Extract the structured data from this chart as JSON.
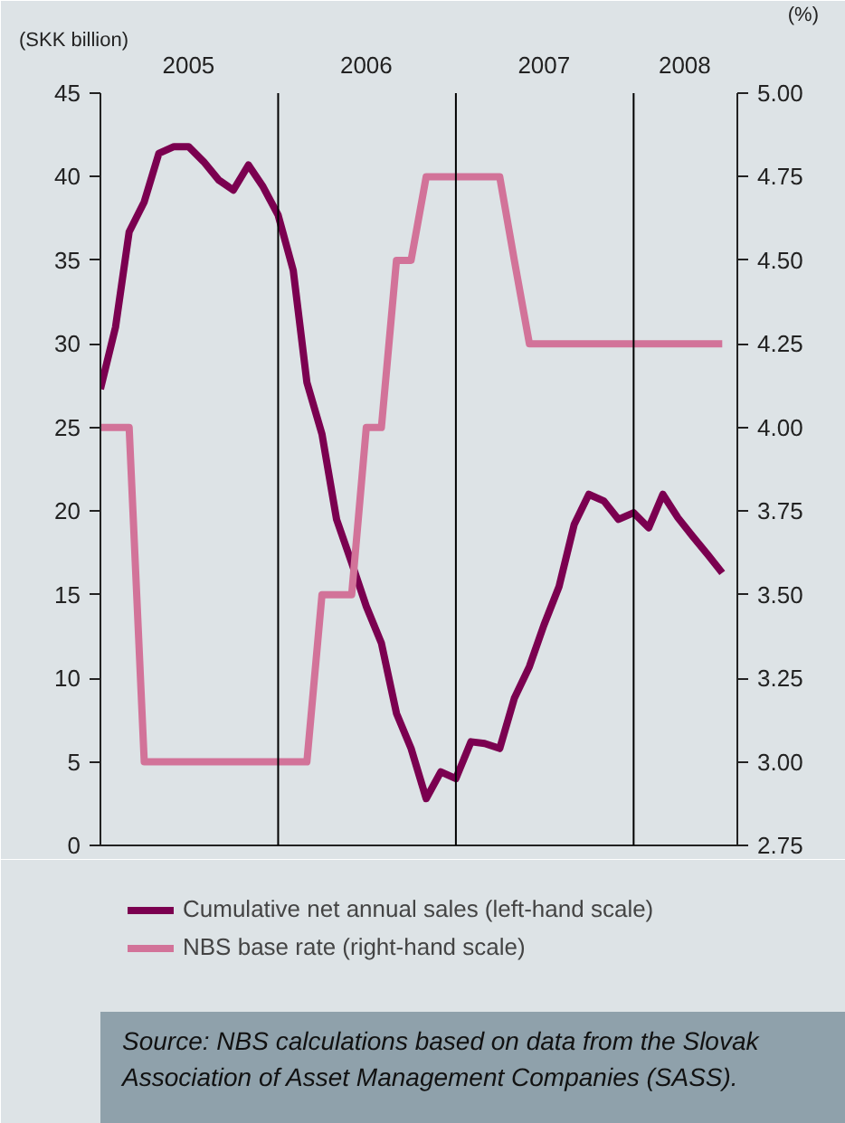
{
  "chart_data": {
    "type": "line",
    "ylabel": "(SKK billion)",
    "y2label": "(%)",
    "x": [
      "2005-01",
      "2005-02",
      "2005-03",
      "2005-04",
      "2005-05",
      "2005-06",
      "2005-07",
      "2005-08",
      "2005-09",
      "2005-10",
      "2005-11",
      "2005-12",
      "2006-01",
      "2006-02",
      "2006-03",
      "2006-04",
      "2006-05",
      "2006-06",
      "2006-07",
      "2006-08",
      "2006-09",
      "2006-10",
      "2006-11",
      "2006-12",
      "2007-01",
      "2007-02",
      "2007-03",
      "2007-04",
      "2007-05",
      "2007-06",
      "2007-07",
      "2007-08",
      "2007-09",
      "2007-10",
      "2007-11",
      "2007-12",
      "2008-01",
      "2008-02",
      "2008-03",
      "2008-04",
      "2008-05",
      "2008-06",
      "2008-07"
    ],
    "series": [
      {
        "name": "Cumulative net annual sales (left-hand scale)",
        "color": "#7b0050",
        "values": [
          27.3,
          31.0,
          36.7,
          38.5,
          41.4,
          41.8,
          41.8,
          40.9,
          39.8,
          39.2,
          40.7,
          39.4,
          37.7,
          34.4,
          27.7,
          24.6,
          19.5,
          16.9,
          14.3,
          12.1,
          7.9,
          5.8,
          2.8,
          4.4,
          4.0,
          6.2,
          6.1,
          5.8,
          8.8,
          10.7,
          13.2,
          15.5,
          19.2,
          21.0,
          20.6,
          19.5,
          19.9,
          19.0,
          21.0,
          19.6,
          18.5,
          17.4,
          16.3
        ]
      },
      {
        "name": "NBS base rate (right-hand scale)",
        "color": "#d27399",
        "axis": "y2",
        "values": [
          4.0,
          4.0,
          4.0,
          3.0,
          3.0,
          3.0,
          3.0,
          3.0,
          3.0,
          3.0,
          3.0,
          3.0,
          3.0,
          3.0,
          3.0,
          3.5,
          3.5,
          3.5,
          4.0,
          4.0,
          4.5,
          4.5,
          4.75,
          4.75,
          4.75,
          4.75,
          4.75,
          4.75,
          4.5,
          4.25,
          4.25,
          4.25,
          4.25,
          4.25,
          4.25,
          4.25,
          4.25,
          4.25,
          4.25,
          4.25,
          4.25,
          4.25,
          4.25
        ]
      }
    ],
    "xlim": [
      "2005-01",
      "2008-08"
    ],
    "xticks": [
      {
        "value": "2005-07",
        "label": "2005"
      },
      {
        "value": "2006-07",
        "label": "2006"
      },
      {
        "value": "2007-07",
        "label": "2007"
      },
      {
        "value": "2008-04-15",
        "label": "2008"
      }
    ],
    "ylim": [
      0,
      45
    ],
    "yticks": [
      0,
      5,
      10,
      15,
      20,
      25,
      30,
      35,
      40,
      45
    ],
    "y2lim": [
      2.75,
      5.0
    ],
    "y2ticks": [
      {
        "value": 2.75,
        "label": "2.75"
      },
      {
        "value": 3.0,
        "label": "3.00"
      },
      {
        "value": 3.25,
        "label": "3.25"
      },
      {
        "value": 3.5,
        "label": "3.50"
      },
      {
        "value": 3.75,
        "label": "3.75"
      },
      {
        "value": 4.0,
        "label": "4.00"
      },
      {
        "value": 4.25,
        "label": "4.25"
      },
      {
        "value": 4.5,
        "label": "4.50"
      },
      {
        "value": 4.75,
        "label": "4.75"
      },
      {
        "value": 5.0,
        "label": "5.00"
      }
    ],
    "ref_lines": [
      {
        "axis": "x",
        "value": "2006-01",
        "color": "#000000"
      },
      {
        "axis": "x",
        "value": "2007-01",
        "color": "#000000"
      },
      {
        "axis": "x",
        "value": "2008-01",
        "color": "#000000"
      }
    ],
    "grid": false,
    "legend": "bottom",
    "marker": "none",
    "line_style": "solid",
    "annotations": [
      "Source: NBS calculations based on data from the Slovak Association of Asset Management Companies (SASS)."
    ]
  }
}
